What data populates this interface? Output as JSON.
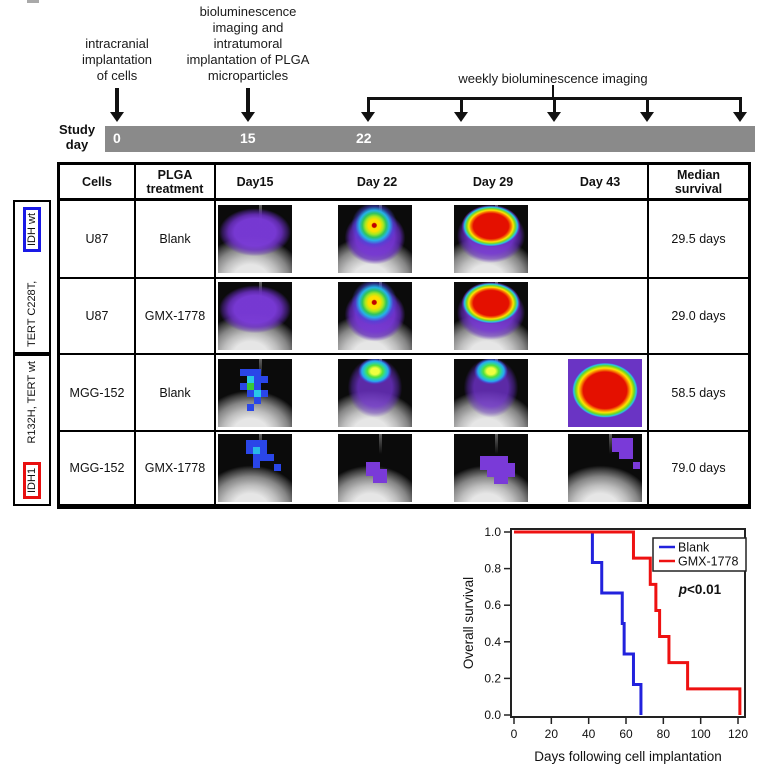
{
  "timeline": {
    "annotations": [
      {
        "id": "implant",
        "lines": [
          "intracranial",
          "implantation",
          "of cells"
        ]
      },
      {
        "id": "plga",
        "lines": [
          "bioluminescence",
          "imaging and",
          "intratumoral",
          "implantation of PLGA",
          "microparticles"
        ]
      },
      {
        "id": "weekly",
        "lines": [
          "weekly bioluminescence imaging"
        ]
      }
    ],
    "axis_label_lines": [
      "Study",
      "day"
    ],
    "bar_days": [
      "0",
      "15",
      "22"
    ],
    "bar_color": "#8a8a8a"
  },
  "table": {
    "headers": {
      "cells": "Cells",
      "treatment": "PLGA treatment",
      "days": [
        "Day15",
        "Day 22",
        "Day 29",
        "Day 43"
      ],
      "median": "Median survival"
    },
    "row_groups": [
      {
        "text": "TERT C228T,",
        "boxed": "IDH wt",
        "box_color": "#1a1ae6",
        "boxed_position": "top"
      },
      {
        "text": "R132H, TERT wt",
        "boxed": "IDH1",
        "box_color": "#e81010",
        "boxed_position": "bottom"
      }
    ],
    "rows": [
      {
        "cells": "U87",
        "treatment": "Blank",
        "images": [
          "purple-haze",
          "small-hotspot",
          "large-red-blob",
          null
        ],
        "median": "29.5 days"
      },
      {
        "cells": "U87",
        "treatment": "GMX-1778",
        "images": [
          "purple-haze",
          "small-hotspot",
          "large-red-blob",
          null
        ],
        "median": "29.0 days"
      },
      {
        "cells": "MGG-152",
        "treatment": "Blank",
        "images": [
          "blue-pixel-patch",
          "cyan-green-hotspot",
          "cyan-green-hotspot",
          "red-fill"
        ],
        "median": "58.5 days"
      },
      {
        "cells": "MGG-152",
        "treatment": "GMX-1778",
        "images": [
          "blue-pixel-patch-top",
          "small-purple-patch",
          "purple-patch",
          "purple-patch-top-right"
        ],
        "median": "79.0 days"
      }
    ]
  },
  "chart_data": {
    "type": "line",
    "subtype": "kaplan-meier-step",
    "title": "",
    "xlabel": "Days following cell implantation",
    "ylabel": "Overall survival",
    "xlim": [
      0,
      125
    ],
    "ylim": [
      0,
      1.0
    ],
    "xticks": [
      0,
      20,
      40,
      60,
      80,
      100,
      120
    ],
    "yticks": [
      "1.0",
      "0.8",
      "0.6",
      "0.4",
      "0.2",
      "0.0"
    ],
    "grid": false,
    "legend_position": "top-right",
    "annotation": {
      "p_italic": "p",
      "p_rest": "<0.01"
    },
    "series": [
      {
        "name": "Blank",
        "color": "#2222dd",
        "steps": [
          [
            42,
            0.833
          ],
          [
            47,
            0.667
          ],
          [
            58,
            0.5
          ],
          [
            59,
            0.333
          ],
          [
            64,
            0.167
          ],
          [
            68,
            0
          ]
        ]
      },
      {
        "name": "GMX-1778",
        "color": "#ee1111",
        "steps": [
          [
            64,
            0.857
          ],
          [
            73,
            0.714
          ],
          [
            76,
            0.571
          ],
          [
            78,
            0.429
          ],
          [
            83,
            0.286
          ],
          [
            93,
            0.143
          ],
          [
            121,
            0
          ]
        ]
      }
    ]
  }
}
